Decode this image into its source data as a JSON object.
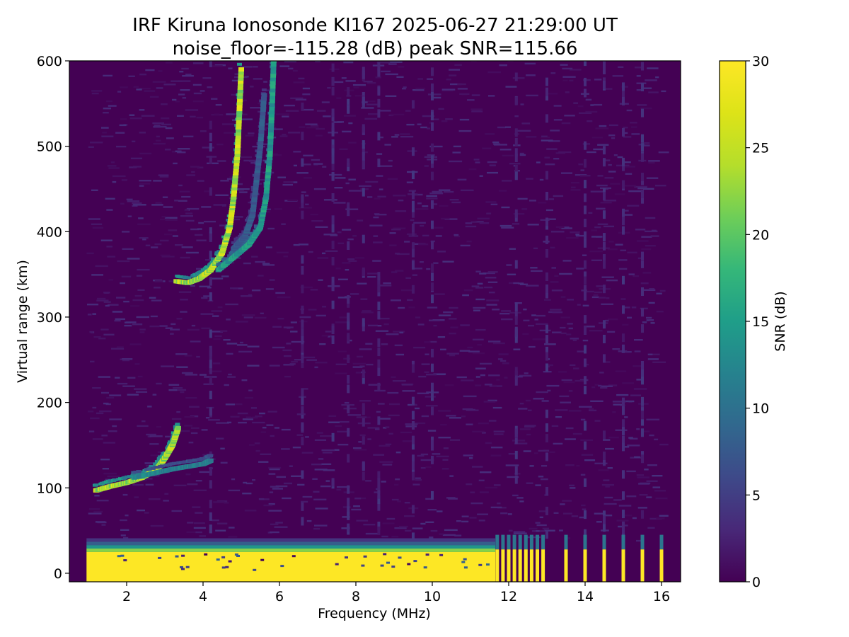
{
  "chart_data": {
    "type": "heatmap",
    "title_line1": "IRF Kiruna Ionosonde KI167 2025-06-27 21:29:00  UT",
    "title_line2": "noise_floor=-115.28 (dB) peak SNR=115.66",
    "xlabel": "Frequency (MHz)",
    "ylabel": "Virtual range (km)",
    "xlim": [
      0.5,
      16.5
    ],
    "ylim": [
      -10,
      600
    ],
    "x_ticks": [
      2,
      4,
      6,
      8,
      10,
      12,
      14,
      16
    ],
    "y_ticks": [
      0,
      100,
      200,
      300,
      400,
      500,
      600
    ],
    "colorbar": {
      "label": "SNR (dB)",
      "range": [
        0,
        30
      ],
      "ticks": [
        0,
        5,
        10,
        15,
        20,
        25,
        30
      ],
      "colormap": "viridis"
    },
    "data_x_range": [
      0.95,
      16.0
    ],
    "traces": [
      {
        "name_hint": "E-layer echo",
        "points": [
          [
            1.2,
            97
          ],
          [
            1.6,
            102
          ],
          [
            2.0,
            106
          ],
          [
            2.4,
            112
          ],
          [
            2.8,
            122
          ],
          [
            3.0,
            135
          ],
          [
            3.2,
            150
          ],
          [
            3.35,
            170
          ]
        ],
        "snr": 28
      },
      {
        "name_hint": "E-layer tail",
        "points": [
          [
            2.2,
            112
          ],
          [
            2.8,
            118
          ],
          [
            3.2,
            122
          ],
          [
            3.6,
            125
          ],
          [
            4.0,
            128
          ],
          [
            4.2,
            132
          ]
        ],
        "snr": 14
      },
      {
        "name_hint": "F-layer echo (o)",
        "points": [
          [
            3.3,
            342
          ],
          [
            3.6,
            340
          ],
          [
            3.9,
            345
          ],
          [
            4.2,
            355
          ],
          [
            4.5,
            375
          ],
          [
            4.7,
            405
          ],
          [
            4.8,
            440
          ],
          [
            4.9,
            490
          ],
          [
            4.95,
            540
          ],
          [
            5.0,
            590
          ]
        ],
        "snr": 28
      },
      {
        "name_hint": "F-layer echo (x)",
        "points": [
          [
            4.4,
            355
          ],
          [
            4.8,
            370
          ],
          [
            5.2,
            385
          ],
          [
            5.5,
            405
          ],
          [
            5.65,
            440
          ],
          [
            5.75,
            490
          ],
          [
            5.8,
            540
          ],
          [
            5.85,
            600
          ]
        ],
        "snr": 17
      },
      {
        "name_hint": "F-layer inner",
        "points": [
          [
            4.8,
            380
          ],
          [
            5.1,
            395
          ],
          [
            5.3,
            420
          ],
          [
            5.4,
            460
          ],
          [
            5.5,
            500
          ],
          [
            5.6,
            560
          ]
        ],
        "snr": 9
      }
    ],
    "ground_clutter": {
      "range_km": [
        0,
        35
      ],
      "freq_mhz": [
        0.95,
        11.65
      ],
      "snr": 30
    },
    "high_freq_spikes_mhz": [
      11.7,
      11.85,
      12.0,
      12.15,
      12.3,
      12.45,
      12.6,
      12.75,
      12.9,
      13.5,
      14.0,
      14.5,
      15.0,
      15.5,
      16.0
    ]
  }
}
